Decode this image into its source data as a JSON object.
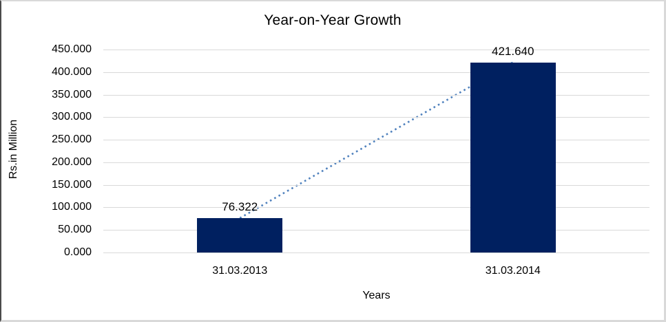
{
  "window": {
    "background": "#ffffff",
    "frame_border_color": "#d9d9d9",
    "frame_border_left_color": "#4a4a4a"
  },
  "chart_data": {
    "type": "bar",
    "title": "Year-on-Year Growth",
    "xlabel": "Years",
    "ylabel": "Rs.in Million",
    "categories": [
      "31.03.2013",
      "31.03.2014"
    ],
    "values": [
      76.322,
      421.64
    ],
    "value_labels": [
      "76.322",
      "421.640"
    ],
    "ylim": [
      0,
      450
    ],
    "ytick_step": 50,
    "ytick_labels": [
      "0.000",
      "50.000",
      "100.000",
      "150.000",
      "200.000",
      "250.000",
      "300.000",
      "350.000",
      "400.000",
      "450.000"
    ],
    "grid": true,
    "legend_position": "none",
    "trendline": {
      "style": "dotted",
      "connects": [
        "31.03.2013",
        "31.03.2014"
      ],
      "color": "#4f81bd"
    },
    "colors": {
      "bar": "#002060",
      "gridline": "#d9d9d9",
      "text": "#000000"
    }
  }
}
